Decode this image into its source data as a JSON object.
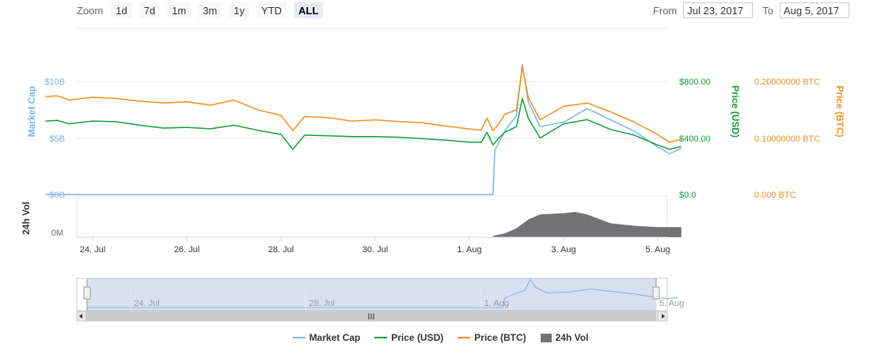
{
  "zoom": {
    "label": "Zoom",
    "buttons": [
      "1d",
      "7d",
      "1m",
      "3m",
      "1y",
      "YTD",
      "ALL"
    ],
    "active": "ALL"
  },
  "range": {
    "from_label": "From",
    "from_value": "Jul 23, 2017",
    "to_label": "To",
    "to_value": "Aug 5, 2017"
  },
  "colors": {
    "market_cap": "#7cb5ec",
    "price_usd": "#149e39",
    "price_btc": "#f28f1e",
    "volume": "#737373"
  },
  "chart_data": {
    "type": "line",
    "x_start": "Jul 23, 2017",
    "x_end": "Aug 5, 2017",
    "x_tick_labels": [
      "24. Jul",
      "26. Jul",
      "28. Jul",
      "30. Jul",
      "1. Aug",
      "3. Aug",
      "5. Aug"
    ],
    "left_axis": {
      "title": "Market Cap",
      "ticks": [
        "$10B",
        "$5B",
        "$0B"
      ],
      "ylim": [
        0,
        10
      ]
    },
    "right_axis_usd": {
      "title": "Price (USD)",
      "ticks": [
        "$800.00",
        "$400.00",
        "$0.0"
      ],
      "ylim": [
        0,
        800
      ]
    },
    "right_axis_btc": {
      "title": "Price (BTC)",
      "ticks": [
        "0.20000000 BTC",
        "0.10000000 BTC",
        "0.000 BTC"
      ],
      "ylim": [
        0,
        0.2
      ]
    },
    "volume_axis": {
      "title": "24h Vol",
      "ticks": [
        "0M"
      ]
    },
    "series": [
      {
        "name": "Market Cap",
        "unit": "USD billions",
        "points": [
          [
            "Jul 23, 2017",
            0
          ],
          [
            "Jul 25, 2017",
            0
          ],
          [
            "Jul 27, 2017",
            0
          ],
          [
            "Jul 29, 2017",
            0
          ],
          [
            "Jul 31, 2017",
            0
          ],
          [
            "Aug 1, 2017",
            0
          ],
          [
            "Aug 1, 2017 12:00",
            0
          ],
          [
            "Aug 1, 2017 13:00",
            3.9
          ],
          [
            "Aug 1, 2017 18:00",
            5.6
          ],
          [
            "Aug 2, 2017",
            7.0
          ],
          [
            "Aug 2, 2017 03:00",
            11.5
          ],
          [
            "Aug 2, 2017 06:00",
            8.2
          ],
          [
            "Aug 2, 2017 12:00",
            6.0
          ],
          [
            "Aug 3, 2017",
            6.4
          ],
          [
            "Aug 3, 2017 12:00",
            7.6
          ],
          [
            "Aug 4, 2017",
            6.6
          ],
          [
            "Aug 4, 2017 12:00",
            5.6
          ],
          [
            "Aug 5, 2017",
            4.2
          ],
          [
            "Aug 5, 2017 06:00",
            3.6
          ],
          [
            "Aug 5, 2017 12:00",
            4.1
          ]
        ]
      },
      {
        "name": "Price (USD)",
        "unit": "USD",
        "points": [
          [
            "Jul 23, 2017",
            520
          ],
          [
            "Jul 23, 2017 06:00",
            525
          ],
          [
            "Jul 23, 2017 12:00",
            500
          ],
          [
            "Jul 24, 2017",
            520
          ],
          [
            "Jul 24, 2017 12:00",
            515
          ],
          [
            "Jul 25, 2017",
            490
          ],
          [
            "Jul 25, 2017 12:00",
            470
          ],
          [
            "Jul 26, 2017",
            475
          ],
          [
            "Jul 26, 2017 12:00",
            465
          ],
          [
            "Jul 27, 2017",
            490
          ],
          [
            "Jul 27, 2017 12:00",
            455
          ],
          [
            "Jul 28, 2017",
            425
          ],
          [
            "Jul 28, 2017 06:00",
            320
          ],
          [
            "Jul 28, 2017 12:00",
            420
          ],
          [
            "Jul 29, 2017",
            415
          ],
          [
            "Jul 29, 2017 12:00",
            410
          ],
          [
            "Jul 30, 2017",
            410
          ],
          [
            "Jul 30, 2017 12:00",
            405
          ],
          [
            "Jul 31, 2017",
            395
          ],
          [
            "Jul 31, 2017 12:00",
            385
          ],
          [
            "Aug 1, 2017",
            370
          ],
          [
            "Aug 1, 2017 06:00",
            370
          ],
          [
            "Aug 1, 2017 09:00",
            440
          ],
          [
            "Aug 1, 2017 12:00",
            350
          ],
          [
            "Aug 1, 2017 15:00",
            400
          ],
          [
            "Aug 1, 2017 18:00",
            440
          ],
          [
            "Aug 2, 2017",
            480
          ],
          [
            "Aug 2, 2017 03:00",
            680
          ],
          [
            "Aug 2, 2017 06:00",
            540
          ],
          [
            "Aug 2, 2017 12:00",
            400
          ],
          [
            "Aug 3, 2017",
            500
          ],
          [
            "Aug 3, 2017 12:00",
            530
          ],
          [
            "Aug 4, 2017",
            460
          ],
          [
            "Aug 4, 2017 12:00",
            420
          ],
          [
            "Aug 5, 2017",
            350
          ],
          [
            "Aug 5, 2017 06:00",
            320
          ],
          [
            "Aug 5, 2017 12:00",
            340
          ]
        ]
      },
      {
        "name": "Price (BTC)",
        "unit": "BTC",
        "points": [
          [
            "Jul 23, 2017",
            0.173
          ],
          [
            "Jul 23, 2017 06:00",
            0.1745
          ],
          [
            "Jul 23, 2017 12:00",
            0.167
          ],
          [
            "Jul 24, 2017",
            0.172
          ],
          [
            "Jul 24, 2017 12:00",
            0.17
          ],
          [
            "Jul 25, 2017",
            0.165
          ],
          [
            "Jul 25, 2017 12:00",
            0.162
          ],
          [
            "Jul 26, 2017",
            0.164
          ],
          [
            "Jul 26, 2017 12:00",
            0.158
          ],
          [
            "Jul 27, 2017",
            0.167
          ],
          [
            "Jul 27, 2017 12:00",
            0.15
          ],
          [
            "Jul 28, 2017",
            0.14
          ],
          [
            "Jul 28, 2017 06:00",
            0.113
          ],
          [
            "Jul 28, 2017 12:00",
            0.138
          ],
          [
            "Jul 29, 2017",
            0.136
          ],
          [
            "Jul 29, 2017 12:00",
            0.13
          ],
          [
            "Jul 30, 2017",
            0.132
          ],
          [
            "Jul 30, 2017 12:00",
            0.129
          ],
          [
            "Jul 31, 2017",
            0.127
          ],
          [
            "Jul 31, 2017 12:00",
            0.121
          ],
          [
            "Aug 1, 2017",
            0.116
          ],
          [
            "Aug 1, 2017 06:00",
            0.114
          ],
          [
            "Aug 1, 2017 09:00",
            0.135
          ],
          [
            "Aug 1, 2017 12:00",
            0.113
          ],
          [
            "Aug 1, 2017 15:00",
            0.125
          ],
          [
            "Aug 1, 2017 18:00",
            0.142
          ],
          [
            "Aug 2, 2017",
            0.15
          ],
          [
            "Aug 2, 2017 03:00",
            0.226
          ],
          [
            "Aug 2, 2017 06:00",
            0.172
          ],
          [
            "Aug 2, 2017 12:00",
            0.132
          ],
          [
            "Aug 3, 2017",
            0.156
          ],
          [
            "Aug 3, 2017 12:00",
            0.162
          ],
          [
            "Aug 4, 2017",
            0.146
          ],
          [
            "Aug 4, 2017 12:00",
            0.128
          ],
          [
            "Aug 5, 2017",
            0.106
          ],
          [
            "Aug 5, 2017 06:00",
            0.092
          ],
          [
            "Aug 5, 2017 12:00",
            0.098
          ]
        ]
      },
      {
        "name": "24h Vol",
        "type": "area",
        "points": [
          [
            "Aug 1, 2017 12:00",
            0.05
          ],
          [
            "Aug 1, 2017 18:00",
            0.15
          ],
          [
            "Aug 2, 2017",
            0.35
          ],
          [
            "Aug 2, 2017 06:00",
            0.7
          ],
          [
            "Aug 2, 2017 12:00",
            0.9
          ],
          [
            "Aug 3, 2017",
            0.95
          ],
          [
            "Aug 3, 2017 06:00",
            1.0
          ],
          [
            "Aug 3, 2017 12:00",
            0.9
          ],
          [
            "Aug 4, 2017",
            0.55
          ],
          [
            "Aug 4, 2017 12:00",
            0.45
          ],
          [
            "Aug 5, 2017",
            0.4
          ],
          [
            "Aug 5, 2017 12:00",
            0.4
          ]
        ]
      }
    ],
    "navigator": {
      "x_tick_labels": [
        "24. Jul",
        "28. Jul",
        "1. Aug",
        "5. Aug"
      ],
      "scrollbar_grip": "III"
    },
    "legend": [
      "Market Cap",
      "Price (USD)",
      "Price (BTC)",
      "24h Vol"
    ]
  }
}
